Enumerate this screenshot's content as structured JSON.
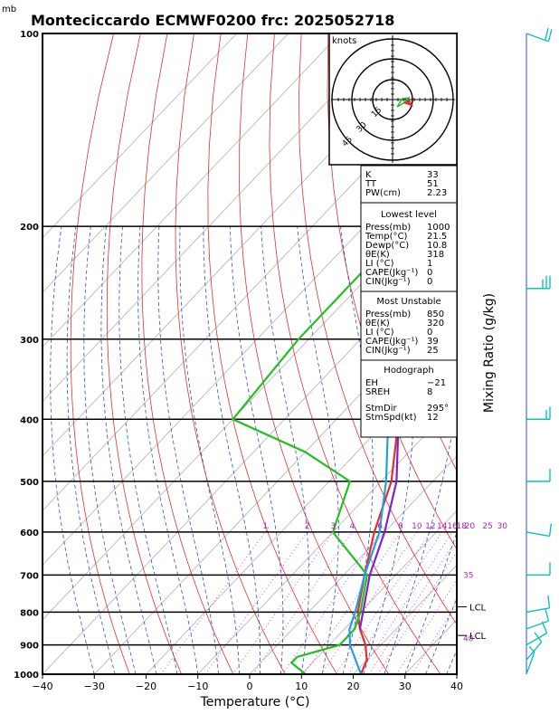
{
  "header": {
    "title": "Monteciccardo ECMWF0200  frc: 2025052718",
    "unit_label": "mb"
  },
  "chart_data": {
    "type": "skew-t",
    "xlabel": "Temperature (°C)",
    "right_label": "Mixing Ratio (g/kg)",
    "xlim": [
      -40,
      40
    ],
    "ylim": [
      1000,
      100
    ],
    "x_ticks": [
      "−40",
      "−30",
      "−20",
      "−10",
      "0",
      "10",
      "20",
      "30",
      "40"
    ],
    "pressure_levels": [
      {
        "p": 100,
        "label": "100"
      },
      {
        "p": 200,
        "label": "200"
      },
      {
        "p": 300,
        "label": "300"
      },
      {
        "p": 400,
        "label": "400"
      },
      {
        "p": 500,
        "label": "500"
      },
      {
        "p": 600,
        "label": "600"
      },
      {
        "p": 700,
        "label": "700"
      },
      {
        "p": 800,
        "label": "800"
      },
      {
        "p": 900,
        "label": "900"
      },
      {
        "p": 1000,
        "label": "1000"
      }
    ],
    "mixing_ratio_labels": [
      "1",
      "2",
      "3",
      "4",
      "6",
      "8",
      "10",
      "12",
      "14",
      "16",
      "18",
      "20",
      "25",
      "30"
    ],
    "theta_e_labels": [
      "35",
      "40"
    ],
    "lcl_labels": [
      {
        "p": 785,
        "label": "LCL"
      },
      {
        "p": 870,
        "label": "LCL"
      }
    ],
    "series": [
      {
        "color": "#e03030",
        "points": [
          [
            1000,
            21.5
          ],
          [
            950,
            20
          ],
          [
            900,
            17
          ],
          [
            850,
            13
          ],
          [
            800,
            9.5
          ],
          [
            700,
            4
          ],
          [
            600,
            -2
          ],
          [
            500,
            -8
          ],
          [
            400,
            -18
          ],
          [
            300,
            -31
          ],
          [
            250,
            -40
          ],
          [
            200,
            -45
          ],
          [
            150,
            -47
          ],
          [
            100,
            -50
          ]
        ]
      },
      {
        "color": "#20c020",
        "points": [
          [
            1000,
            10.8
          ],
          [
            960,
            6
          ],
          [
            940,
            6
          ],
          [
            900,
            12
          ],
          [
            850,
            12
          ],
          [
            800,
            10
          ],
          [
            700,
            4.5
          ],
          [
            600,
            -10
          ],
          [
            500,
            -16
          ],
          [
            450,
            -30
          ],
          [
            400,
            -50
          ],
          [
            300,
            -52
          ],
          [
            200,
            -52
          ],
          [
            100,
            -60
          ]
        ]
      },
      {
        "color": "#20a0e0",
        "points": [
          [
            1000,
            21.5
          ],
          [
            900,
            14
          ],
          [
            850,
            11
          ],
          [
            800,
            9
          ],
          [
            700,
            4
          ],
          [
            600,
            -1
          ],
          [
            500,
            -9
          ],
          [
            400,
            -20
          ],
          [
            300,
            -36
          ],
          [
            200,
            -58
          ],
          [
            100,
            -84
          ]
        ]
      },
      {
        "color": "#8020d0",
        "points": [
          [
            850,
            13
          ],
          [
            800,
            10.5
          ],
          [
            700,
            5
          ],
          [
            600,
            0
          ],
          [
            500,
            -7
          ],
          [
            400,
            -18
          ],
          [
            300,
            -33
          ],
          [
            200,
            -54
          ],
          [
            100,
            -80
          ]
        ]
      }
    ]
  },
  "hodograph": {
    "unit": "knots",
    "rings": [
      "15",
      "30",
      "45"
    ]
  },
  "indices": [
    {
      "label": "K",
      "value": "33"
    },
    {
      "label": "TT",
      "value": "51"
    },
    {
      "label": "PW(cm)",
      "value": "2.23"
    }
  ],
  "lowest_level": {
    "title": "Lowest level",
    "rows": [
      {
        "label": "Press(mb)",
        "value": "1000"
      },
      {
        "label": "Temp(°C)",
        "value": "21.5"
      },
      {
        "label": "Dewp(°C)",
        "value": "10.8"
      },
      {
        "label": "θE(K)",
        "value": "318"
      },
      {
        "label": "LI (°C)",
        "value": "1"
      },
      {
        "label": "CAPE(Jkg⁻¹)",
        "value": "0"
      },
      {
        "label": "CIN(Jkg⁻¹)",
        "value": "0"
      }
    ]
  },
  "most_unstable": {
    "title": "Most Unstable",
    "rows": [
      {
        "label": "Press(mb)",
        "value": "850"
      },
      {
        "label": "θE(K)",
        "value": "320"
      },
      {
        "label": "LI (°C)",
        "value": "0"
      },
      {
        "label": "CAPE(Jkg⁻¹)",
        "value": "39"
      },
      {
        "label": "CIN(Jkg⁻¹)",
        "value": "25"
      }
    ]
  },
  "hodograph_box": {
    "title": "Hodograph",
    "rows": [
      {
        "label": "EH",
        "value": "−21"
      },
      {
        "label": "SREH",
        "value": "8"
      },
      {
        "label": "StmDir",
        "value": "295°"
      },
      {
        "label": "StmSpd(kt)",
        "value": "12"
      }
    ]
  },
  "wind_barbs": [
    {
      "p": 100,
      "dir": 290,
      "spd": 20
    },
    {
      "p": 250,
      "dir": 270,
      "spd": 25
    },
    {
      "p": 400,
      "dir": 270,
      "spd": 15
    },
    {
      "p": 500,
      "dir": 270,
      "spd": 10
    },
    {
      "p": 600,
      "dir": 280,
      "spd": 10
    },
    {
      "p": 700,
      "dir": 270,
      "spd": 10
    },
    {
      "p": 800,
      "dir": 260,
      "spd": 10
    },
    {
      "p": 850,
      "dir": 250,
      "spd": 10
    },
    {
      "p": 900,
      "dir": 240,
      "spd": 10
    },
    {
      "p": 950,
      "dir": 220,
      "spd": 10
    },
    {
      "p": 1000,
      "dir": 200,
      "spd": 5
    }
  ]
}
